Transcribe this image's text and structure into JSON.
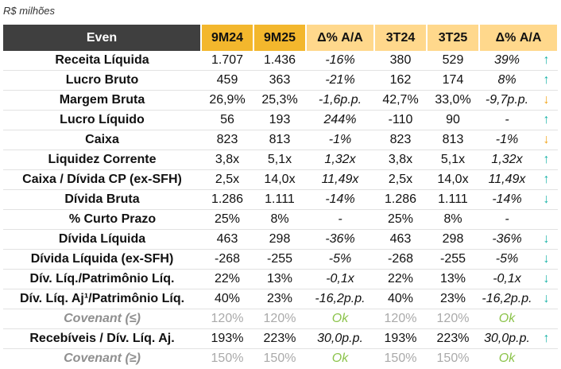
{
  "caption": "R$ milhões",
  "headers": {
    "label": "Even",
    "c1": "9M24",
    "c2": "9M25",
    "c3": "Δ% A/A",
    "c4": "3T24",
    "c5": "3T25",
    "c6": "Δ% A/A"
  },
  "colors": {
    "header_dark": "#3f3f3f",
    "header_9m": "#f3b72d",
    "header_3t": "#ffd88c",
    "arrow_positive": "#19b3a8",
    "arrow_warning": "#f2a51a",
    "covenant_ok": "#8bc34a"
  },
  "rows": [
    {
      "label": "Receita Líquida",
      "v1": "1.707",
      "v2": "1.436",
      "d1": "-16%",
      "v3": "380",
      "v4": "529",
      "d2": "39%",
      "arrow": "↑",
      "arrow_icon": "arrow-up-icon"
    },
    {
      "label": "Lucro Bruto",
      "v1": "459",
      "v2": "363",
      "d1": "-21%",
      "v3": "162",
      "v4": "174",
      "d2": "8%",
      "arrow": "↑",
      "arrow_icon": "arrow-up-icon"
    },
    {
      "label": "Margem Bruta",
      "v1": "26,9%",
      "v2": "25,3%",
      "d1": "-1,6p.p.",
      "v3": "42,7%",
      "v4": "33,0%",
      "d2": "-9,7p.p.",
      "arrow": "↓",
      "arrow_icon": "arrow-down-warning-icon"
    },
    {
      "label": "Lucro Líquido",
      "v1": "56",
      "v2": "193",
      "d1": "244%",
      "v3": "-110",
      "v4": "90",
      "d2": "-",
      "arrow": "↑",
      "arrow_icon": "arrow-up-icon"
    },
    {
      "label": "Caixa",
      "v1": "823",
      "v2": "813",
      "d1": "-1%",
      "v3": "823",
      "v4": "813",
      "d2": "-1%",
      "arrow": "↓",
      "arrow_icon": "arrow-down-warning-icon"
    },
    {
      "label": "Liquidez Corrente",
      "v1": "3,8x",
      "v2": "5,1x",
      "d1": "1,32x",
      "v3": "3,8x",
      "v4": "5,1x",
      "d2": "1,32x",
      "arrow": "↑",
      "arrow_icon": "arrow-up-icon"
    },
    {
      "label": "Caixa / Dívida CP (ex-SFH)",
      "v1": "2,5x",
      "v2": "14,0x",
      "d1": "11,49x",
      "v3": "2,5x",
      "v4": "14,0x",
      "d2": "11,49x",
      "arrow": "↑",
      "arrow_icon": "arrow-up-icon"
    },
    {
      "label": "Dívida Bruta",
      "v1": "1.286",
      "v2": "1.111",
      "d1": "-14%",
      "v3": "1.286",
      "v4": "1.111",
      "d2": "-14%",
      "arrow": "↓",
      "arrow_icon": "arrow-down-icon"
    },
    {
      "label": "% Curto Prazo",
      "v1": "25%",
      "v2": "8%",
      "d1": "-",
      "v3": "25%",
      "v4": "8%",
      "d2": "-",
      "arrow": "",
      "arrow_icon": "",
      "indent": true
    },
    {
      "label": "Dívida Líquida",
      "v1": "463",
      "v2": "298",
      "d1": "-36%",
      "v3": "463",
      "v4": "298",
      "d2": "-36%",
      "arrow": "↓",
      "arrow_icon": "arrow-down-icon"
    },
    {
      "label": "Dívida Líquida (ex-SFH)",
      "v1": "-268",
      "v2": "-255",
      "d1": "-5%",
      "v3": "-268",
      "v4": "-255",
      "d2": "-5%",
      "arrow": "↓",
      "arrow_icon": "arrow-down-icon"
    },
    {
      "label": "Dív. Líq./Patrimônio Líq.",
      "v1": "22%",
      "v2": "13%",
      "d1": "-0,1x",
      "v3": "22%",
      "v4": "13%",
      "d2": "-0,1x",
      "arrow": "↓",
      "arrow_icon": "arrow-down-icon"
    },
    {
      "label": "Dív. Líq. Aj¹/Patrimônio Líq.",
      "v1": "40%",
      "v2": "23%",
      "d1": "-16,2p.p.",
      "v3": "40%",
      "v4": "23%",
      "d2": "-16,2p.p.",
      "arrow": "↓",
      "arrow_icon": "arrow-down-icon"
    },
    {
      "label": "Covenant (≤)",
      "v1": "120%",
      "v2": "120%",
      "d1": "Ok",
      "v3": "120%",
      "v4": "120%",
      "d2": "Ok",
      "arrow": "",
      "arrow_icon": "",
      "dim": true
    },
    {
      "label": "Recebíveis / Dív. Líq. Aj.",
      "v1": "193%",
      "v2": "223%",
      "d1": "30,0p.p.",
      "v3": "193%",
      "v4": "223%",
      "d2": "30,0p.p.",
      "arrow": "↑",
      "arrow_icon": "arrow-up-icon"
    },
    {
      "label": "Covenant (≥)",
      "v1": "150%",
      "v2": "150%",
      "d1": "Ok",
      "v3": "150%",
      "v4": "150%",
      "d2": "Ok",
      "arrow": "",
      "arrow_icon": "",
      "dim": true
    }
  ]
}
